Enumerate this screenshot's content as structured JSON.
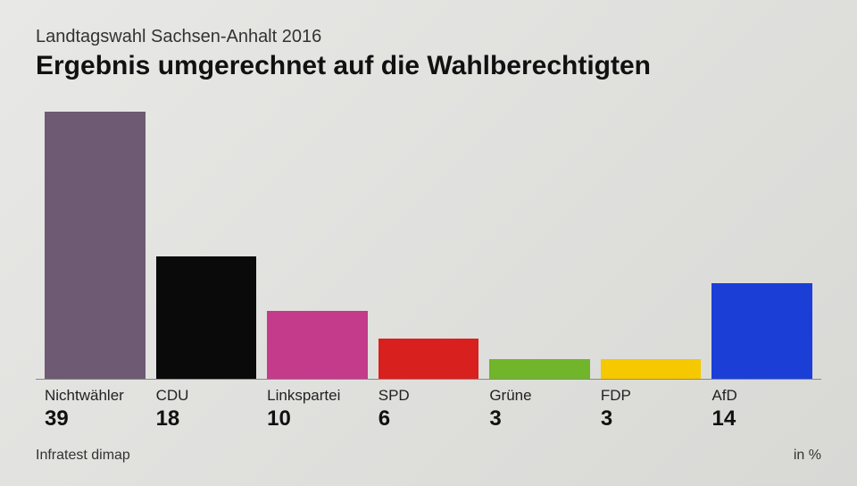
{
  "header": {
    "subtitle": "Landtagswahl Sachsen-Anhalt 2016",
    "title": "Ergebnis umgerechnet auf die Wahlberechtigten"
  },
  "chart": {
    "type": "bar",
    "max_value": 39,
    "background_gradient_start": "#e8e8e6",
    "background_gradient_end": "#d8d8d5",
    "baseline_color": "#888888",
    "bars": [
      {
        "category": "Nichtwähler",
        "value": 39,
        "color": "#6e5a73"
      },
      {
        "category": "CDU",
        "value": 18,
        "color": "#0a0a0a"
      },
      {
        "category": "Linkspartei",
        "value": 10,
        "color": "#c43b8c"
      },
      {
        "category": "SPD",
        "value": 6,
        "color": "#d8201f"
      },
      {
        "category": "Grüne",
        "value": 3,
        "color": "#71b52b"
      },
      {
        "category": "FDP",
        "value": 3,
        "color": "#f5c800"
      },
      {
        "category": "AfD",
        "value": 14,
        "color": "#1b3fd6"
      }
    ],
    "category_fontsize": 17,
    "value_fontsize": 24,
    "title_fontsize": 30,
    "subtitle_fontsize": 20
  },
  "footer": {
    "source": "Infratest dimap",
    "unit": "in %"
  }
}
